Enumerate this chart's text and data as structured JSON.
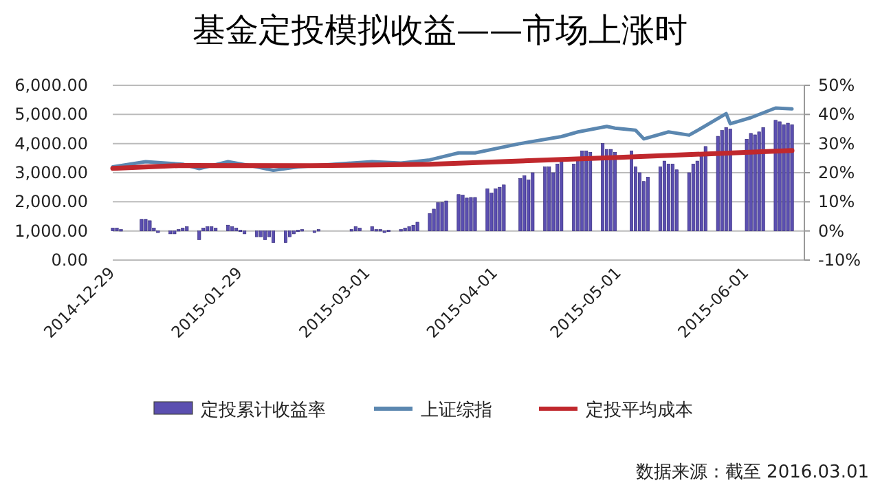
{
  "chart_data": {
    "type": "bar",
    "title": "基金定投模拟收益——市场上涨时",
    "xlim": [
      "2014-12-29",
      "2015-06-15"
    ],
    "xticks": [
      {
        "value": "2014-12-29",
        "label": "2014-12-29"
      },
      {
        "value": "2015-01-29",
        "label": "2015-01-29"
      },
      {
        "value": "2015-03-01",
        "label": "2015-03-01"
      },
      {
        "value": "2015-04-01",
        "label": "2015-04-01"
      },
      {
        "value": "2015-05-01",
        "label": "2015-05-01"
      },
      {
        "value": "2015-06-01",
        "label": "2015-06-01"
      }
    ],
    "ylim": [
      0,
      6000
    ],
    "yticks": [
      {
        "value": 0,
        "label": "0.00"
      },
      {
        "value": 1000,
        "label": "1,000.00"
      },
      {
        "value": 2000,
        "label": "2,000.00"
      },
      {
        "value": 3000,
        "label": "3,000.00"
      },
      {
        "value": 4000,
        "label": "4,000.00"
      },
      {
        "value": 5000,
        "label": "5,000.00"
      },
      {
        "value": 6000,
        "label": "6,000.00"
      }
    ],
    "y2lim": [
      -10,
      50
    ],
    "y2ticks": [
      {
        "value": -10,
        "label": "-10%"
      },
      {
        "value": 0,
        "label": "0%"
      },
      {
        "value": 10,
        "label": "10%"
      },
      {
        "value": 20,
        "label": "20%"
      },
      {
        "value": 30,
        "label": "30%"
      },
      {
        "value": 40,
        "label": "40%"
      },
      {
        "value": 50,
        "label": "50%"
      }
    ],
    "grid": "y",
    "legend": "bottom",
    "series": [
      {
        "name": "定投累计收益率",
        "axis": "y2",
        "color": "#5b4fb0",
        "x": [
          "2014-12-29",
          "2014-12-30",
          "2014-12-31",
          "2015-01-05",
          "2015-01-06",
          "2015-01-07",
          "2015-01-08",
          "2015-01-09",
          "2015-01-12",
          "2015-01-13",
          "2015-01-14",
          "2015-01-15",
          "2015-01-16",
          "2015-01-19",
          "2015-01-20",
          "2015-01-21",
          "2015-01-22",
          "2015-01-23",
          "2015-01-26",
          "2015-01-27",
          "2015-01-28",
          "2015-01-29",
          "2015-01-30",
          "2015-02-02",
          "2015-02-03",
          "2015-02-04",
          "2015-02-05",
          "2015-02-06",
          "2015-02-09",
          "2015-02-10",
          "2015-02-11",
          "2015-02-12",
          "2015-02-13",
          "2015-02-16",
          "2015-02-17",
          "2015-02-25",
          "2015-02-26",
          "2015-02-27",
          "2015-03-02",
          "2015-03-03",
          "2015-03-04",
          "2015-03-05",
          "2015-03-06",
          "2015-03-09",
          "2015-03-10",
          "2015-03-11",
          "2015-03-12",
          "2015-03-13",
          "2015-03-16",
          "2015-03-17",
          "2015-03-18",
          "2015-03-19",
          "2015-03-20",
          "2015-03-23",
          "2015-03-24",
          "2015-03-25",
          "2015-03-26",
          "2015-03-27",
          "2015-03-30",
          "2015-03-31",
          "2015-04-01",
          "2015-04-02",
          "2015-04-03",
          "2015-04-07",
          "2015-04-08",
          "2015-04-09",
          "2015-04-10",
          "2015-04-13",
          "2015-04-14",
          "2015-04-15",
          "2015-04-16",
          "2015-04-17",
          "2015-04-20",
          "2015-04-21",
          "2015-04-22",
          "2015-04-23",
          "2015-04-24",
          "2015-04-27",
          "2015-04-28",
          "2015-04-29",
          "2015-04-30",
          "2015-05-04",
          "2015-05-05",
          "2015-05-06",
          "2015-05-07",
          "2015-05-08",
          "2015-05-11",
          "2015-05-12",
          "2015-05-13",
          "2015-05-14",
          "2015-05-15",
          "2015-05-18",
          "2015-05-19",
          "2015-05-20",
          "2015-05-21",
          "2015-05-22",
          "2015-05-25",
          "2015-05-26",
          "2015-05-27",
          "2015-05-28",
          "2015-06-01",
          "2015-06-02",
          "2015-06-03",
          "2015-06-04",
          "2015-06-05",
          "2015-06-08",
          "2015-06-09",
          "2015-06-10",
          "2015-06-11",
          "2015-06-12"
        ],
        "values": [
          1,
          1,
          0.5,
          4,
          4,
          3.5,
          1,
          -0.5,
          -1,
          -1,
          0.5,
          1,
          1.5,
          -3,
          1,
          1.5,
          1.5,
          1,
          2,
          1.5,
          1,
          0.3,
          -1,
          -2,
          -2,
          -3,
          -2,
          -4,
          -4,
          -2,
          -1,
          0.3,
          0.5,
          -0.5,
          0.5,
          0.5,
          1.5,
          1,
          1.5,
          0.5,
          0.5,
          -0.5,
          0.3,
          0.5,
          1,
          1.5,
          2,
          3,
          6,
          7.5,
          9.7,
          9.8,
          10.3,
          12.5,
          12.3,
          11.3,
          11.5,
          11.5,
          14.5,
          13,
          14.5,
          15,
          15.8,
          18,
          19,
          17.5,
          20,
          22,
          22,
          20,
          23,
          25,
          23,
          25,
          27.5,
          27.5,
          27,
          30,
          28,
          28,
          27,
          27.5,
          22,
          20,
          17,
          18.5,
          22,
          24,
          23,
          23,
          21,
          20,
          23,
          24,
          26,
          29,
          32.5,
          34.5,
          35.5,
          35,
          31.5,
          33.5,
          33,
          34,
          35.5,
          38,
          37.5,
          36.5,
          37,
          36.5
        ]
      },
      {
        "name": "上证综指",
        "type": "line",
        "color": "#5b87b0",
        "x": [
          "2014-12-29",
          "2015-01-06",
          "2015-01-15",
          "2015-01-19",
          "2015-01-26",
          "2015-02-02",
          "2015-02-06",
          "2015-02-12",
          "2015-03-02",
          "2015-03-09",
          "2015-03-16",
          "2015-03-23",
          "2015-03-27",
          "2015-04-07",
          "2015-04-17",
          "2015-04-21",
          "2015-04-28",
          "2015-04-30",
          "2015-05-05",
          "2015-05-07",
          "2015-05-13",
          "2015-05-18",
          "2015-05-21",
          "2015-05-27",
          "2015-05-28",
          "2015-06-02",
          "2015-06-08",
          "2015-06-12"
        ],
        "values": [
          3200,
          3380,
          3290,
          3140,
          3380,
          3200,
          3080,
          3200,
          3380,
          3330,
          3440,
          3680,
          3680,
          4000,
          4240,
          4400,
          4590,
          4530,
          4460,
          4160,
          4400,
          4290,
          4530,
          5030,
          4680,
          4890,
          5220,
          5190
        ]
      },
      {
        "name": "定投平均成本",
        "type": "line",
        "color": "#c0282d",
        "x": [
          "2014-12-29",
          "2015-01-15",
          "2015-02-15",
          "2015-03-16",
          "2015-04-30",
          "2015-06-12"
        ],
        "values": [
          3150,
          3250,
          3240,
          3290,
          3520,
          3760
        ]
      }
    ],
    "annotations": [
      "数据来源：截至 2016.03.01"
    ]
  }
}
